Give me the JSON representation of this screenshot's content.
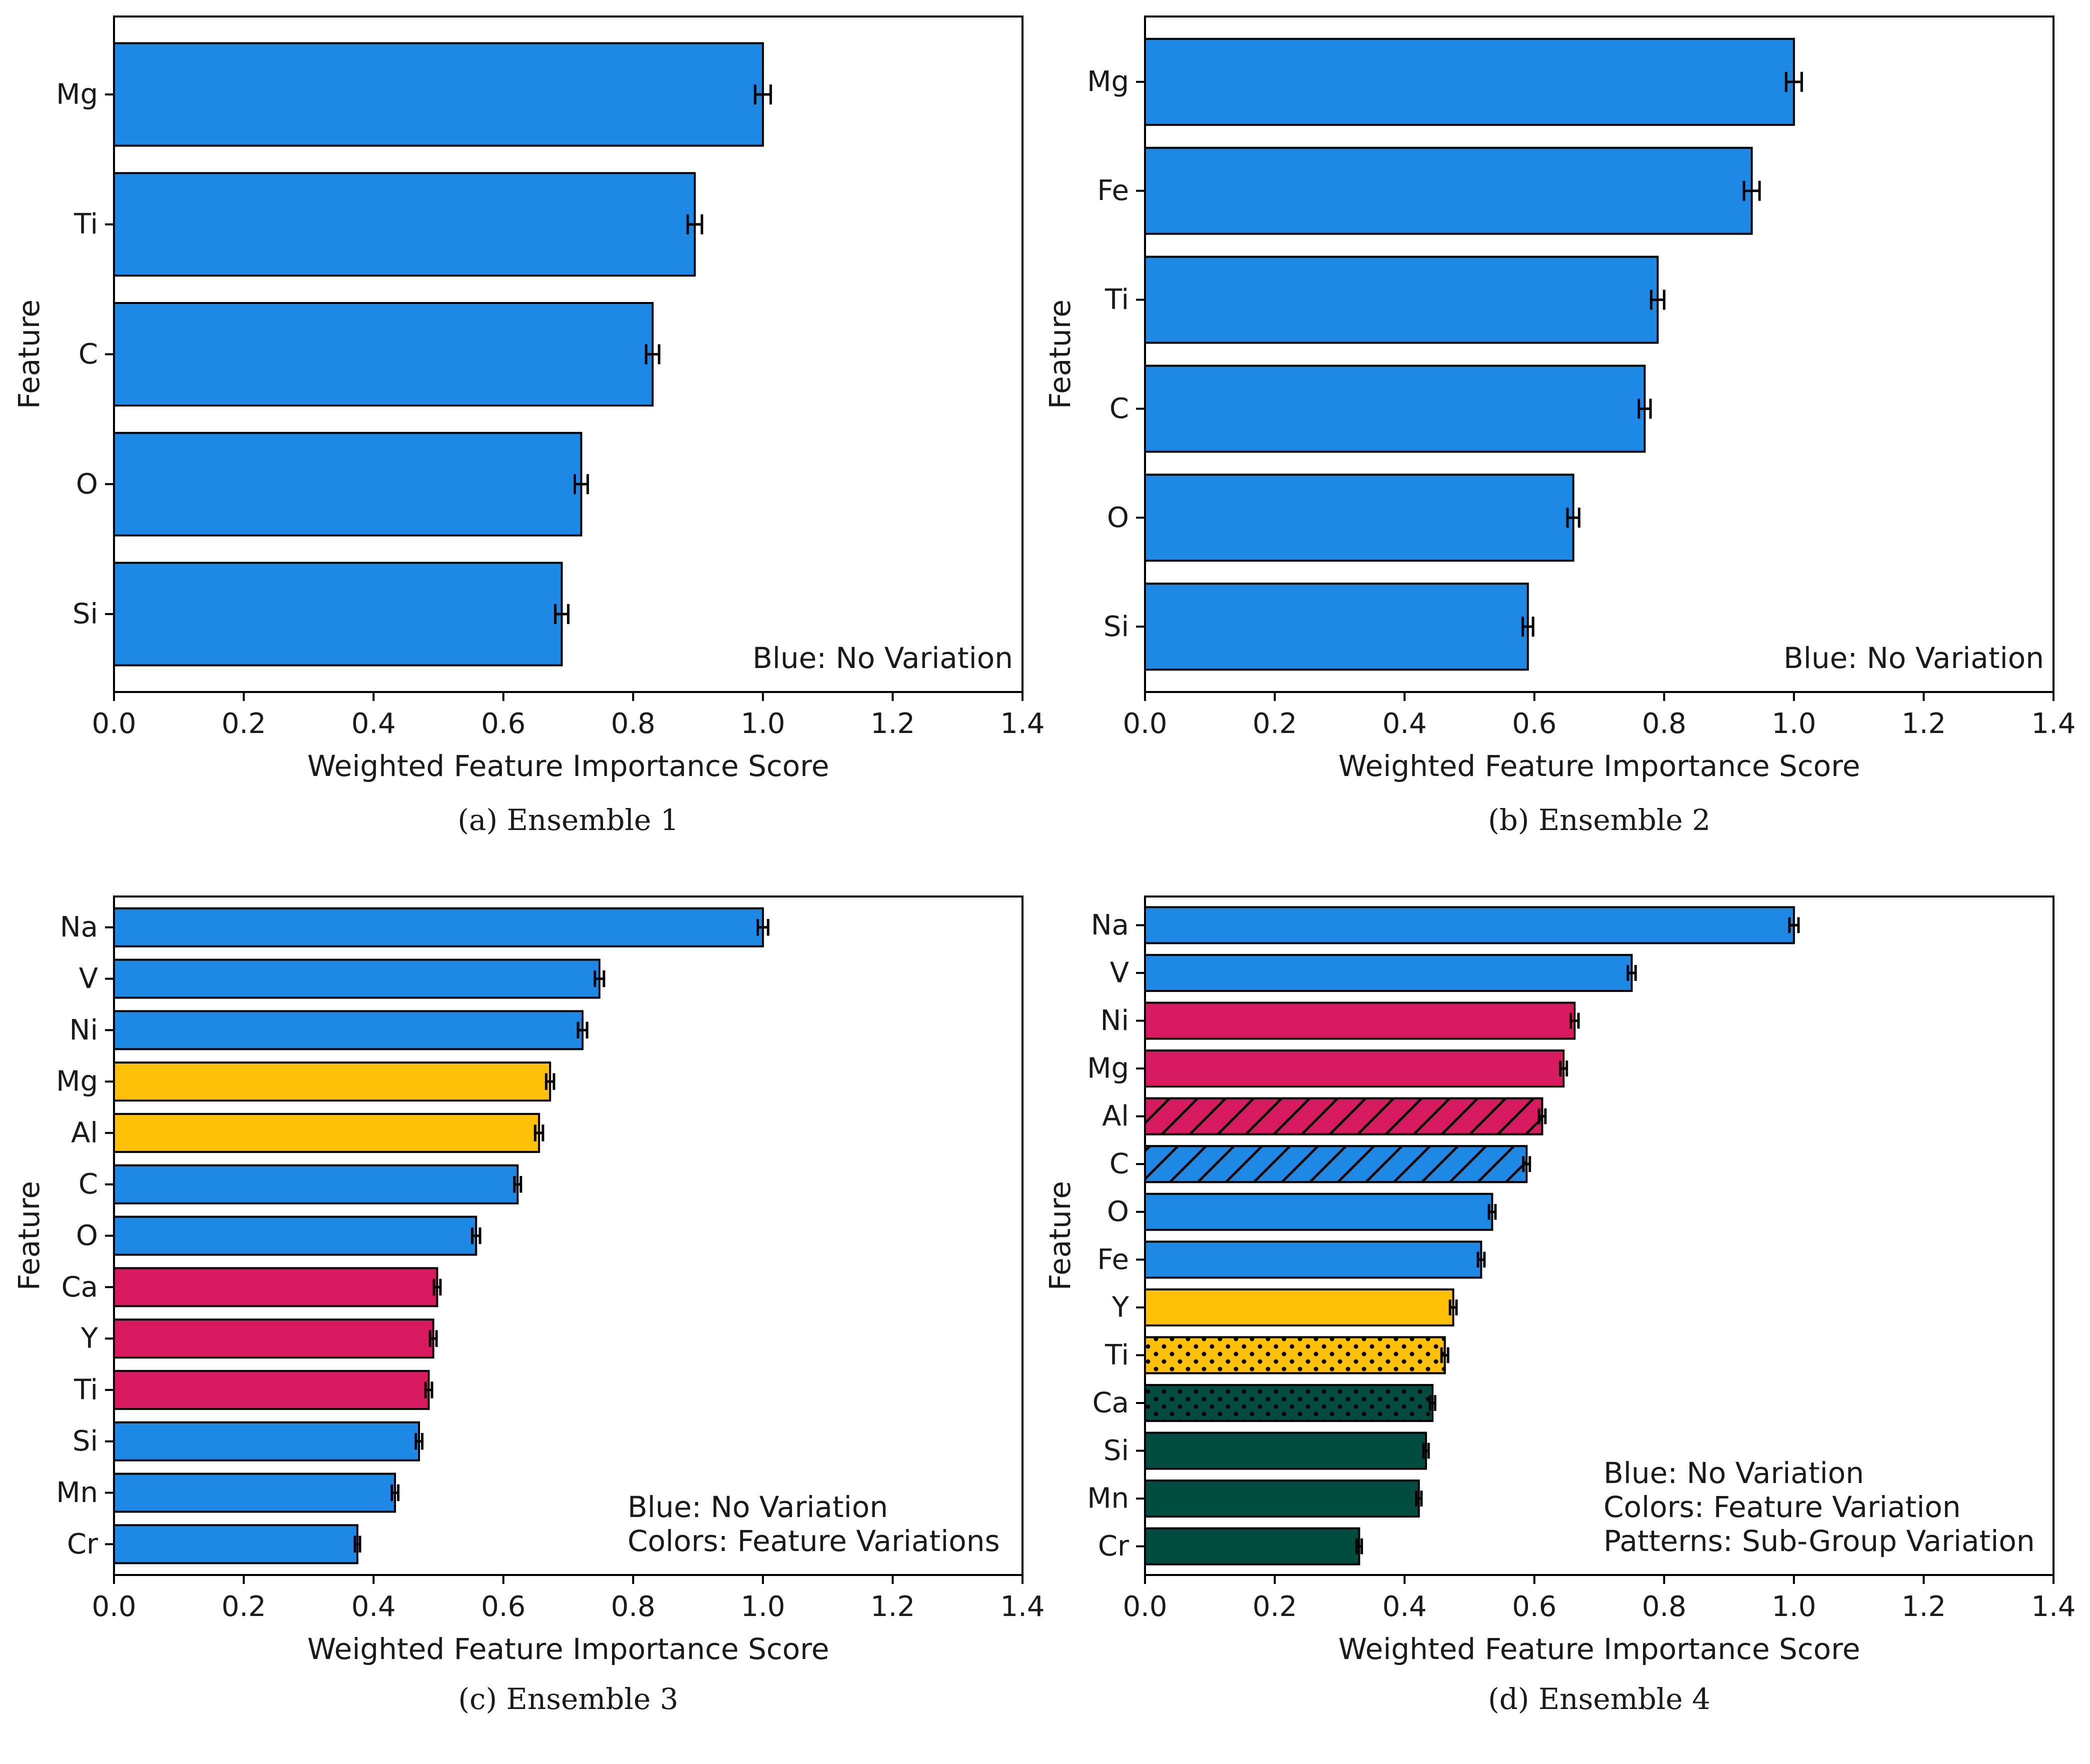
{
  "colors": {
    "blue": "#1e88e5",
    "yellow": "#ffc107",
    "magenta": "#d81b60",
    "green": "#004d40",
    "edge": "#000000"
  },
  "chart_data": [
    {
      "type": "bar",
      "orientation": "horizontal",
      "caption": "(a) Ensemble 1",
      "xlabel": "Weighted Feature Importance Score",
      "ylabel": "Feature",
      "xlim": [
        0,
        1.4
      ],
      "xticks": [
        "0.0",
        "0.2",
        "0.4",
        "0.6",
        "0.8",
        "1.0",
        "1.2",
        "1.4"
      ],
      "legend_placement": "bottom-right",
      "legend": [
        "Blue: No Variation"
      ],
      "categories": [
        "Mg",
        "Ti",
        "C",
        "O",
        "Si"
      ],
      "values": [
        1.0,
        0.895,
        0.83,
        0.72,
        0.69
      ],
      "errors": [
        0.012,
        0.011,
        0.01,
        0.01,
        0.01
      ],
      "bar_colors": [
        "blue",
        "blue",
        "blue",
        "blue",
        "blue"
      ],
      "patterns": [
        "none",
        "none",
        "none",
        "none",
        "none"
      ]
    },
    {
      "type": "bar",
      "orientation": "horizontal",
      "caption": "(b) Ensemble 2",
      "xlabel": "Weighted Feature Importance Score",
      "ylabel": "Feature",
      "xlim": [
        0,
        1.4
      ],
      "xticks": [
        "0.0",
        "0.2",
        "0.4",
        "0.6",
        "0.8",
        "1.0",
        "1.2",
        "1.4"
      ],
      "legend_placement": "bottom-right",
      "legend": [
        "Blue: No Variation"
      ],
      "categories": [
        "Mg",
        "Fe",
        "Ti",
        "C",
        "O",
        "Si"
      ],
      "values": [
        1.0,
        0.935,
        0.79,
        0.77,
        0.66,
        0.59
      ],
      "errors": [
        0.012,
        0.012,
        0.01,
        0.009,
        0.009,
        0.008
      ],
      "bar_colors": [
        "blue",
        "blue",
        "blue",
        "blue",
        "blue",
        "blue"
      ],
      "patterns": [
        "none",
        "none",
        "none",
        "none",
        "none",
        "none"
      ]
    },
    {
      "type": "bar",
      "orientation": "horizontal",
      "caption": "(c) Ensemble 3",
      "xlabel": "Weighted Feature Importance Score",
      "ylabel": "Feature",
      "xlim": [
        0,
        1.4
      ],
      "xticks": [
        "0.0",
        "0.2",
        "0.4",
        "0.6",
        "0.8",
        "1.0",
        "1.2",
        "1.4"
      ],
      "legend_placement": "bottom-right",
      "legend": [
        "Blue: No Variation",
        "Colors: Feature Variations"
      ],
      "categories": [
        "Na",
        "V",
        "Ni",
        "Mg",
        "Al",
        "C",
        "O",
        "Ca",
        "Y",
        "Ti",
        "Si",
        "Mn",
        "Cr"
      ],
      "values": [
        1.0,
        0.748,
        0.722,
        0.672,
        0.655,
        0.622,
        0.558,
        0.498,
        0.492,
        0.485,
        0.47,
        0.433,
        0.375
      ],
      "errors": [
        0.008,
        0.007,
        0.007,
        0.006,
        0.006,
        0.005,
        0.006,
        0.005,
        0.005,
        0.005,
        0.005,
        0.005,
        0.004
      ],
      "bar_colors": [
        "blue",
        "blue",
        "blue",
        "yellow",
        "yellow",
        "blue",
        "blue",
        "magenta",
        "magenta",
        "magenta",
        "blue",
        "blue",
        "blue"
      ],
      "patterns": [
        "none",
        "none",
        "none",
        "none",
        "none",
        "none",
        "none",
        "none",
        "none",
        "none",
        "none",
        "none",
        "none"
      ]
    },
    {
      "type": "bar",
      "orientation": "horizontal",
      "caption": "(d) Ensemble 4",
      "xlabel": "Weighted Feature Importance Score",
      "ylabel": "Feature",
      "xlim": [
        0,
        1.4
      ],
      "xticks": [
        "0.0",
        "0.2",
        "0.4",
        "0.6",
        "0.8",
        "1.0",
        "1.2",
        "1.4"
      ],
      "legend_placement": "bottom-right",
      "legend": [
        "Blue: No Variation",
        "Colors: Feature Variation",
        "Patterns: Sub-Group Variation"
      ],
      "categories": [
        "Na",
        "V",
        "Ni",
        "Mg",
        "Al",
        "C",
        "O",
        "Fe",
        "Y",
        "Ti",
        "Ca",
        "Si",
        "Mn",
        "Cr"
      ],
      "values": [
        1.0,
        0.75,
        0.662,
        0.645,
        0.612,
        0.588,
        0.535,
        0.518,
        0.475,
        0.462,
        0.443,
        0.433,
        0.422,
        0.33
      ],
      "errors": [
        0.007,
        0.006,
        0.006,
        0.005,
        0.005,
        0.005,
        0.005,
        0.005,
        0.005,
        0.005,
        0.004,
        0.004,
        0.004,
        0.004
      ],
      "bar_colors": [
        "blue",
        "blue",
        "magenta",
        "magenta",
        "magenta",
        "blue",
        "blue",
        "blue",
        "yellow",
        "yellow",
        "green",
        "green",
        "green",
        "green"
      ],
      "patterns": [
        "none",
        "none",
        "none",
        "none",
        "hatch",
        "hatch",
        "none",
        "none",
        "none",
        "dots",
        "dots",
        "none",
        "none",
        "none"
      ]
    }
  ]
}
